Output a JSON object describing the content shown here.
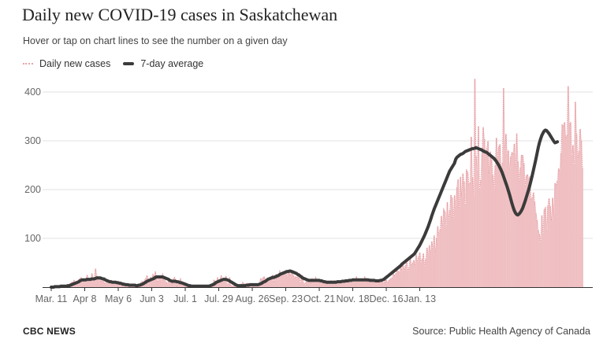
{
  "header": {
    "title": "Daily new COVID-19 cases in Saskatchewan",
    "subtitle": "Hover or tap on chart lines to see the number on a given day"
  },
  "legend": {
    "daily_label": "Daily new cases",
    "avg_label": "7-day average"
  },
  "footer": {
    "brand": "CBC NEWS",
    "source": "Source: Public Health Agency of Canada"
  },
  "colors": {
    "bar_fill": "#efbfc2",
    "daily_line": "#e6939a",
    "avg_line": "#3b3b3b",
    "grid": "#e2e2e2"
  },
  "chart_data": {
    "type": "bar",
    "title": "Daily new COVID-19 cases in Saskatchewan",
    "xlabel": "",
    "ylabel": "",
    "ylim": [
      0,
      400
    ],
    "yticks": [
      100,
      200,
      300,
      400
    ],
    "grid": true,
    "legend_placement": "top-left",
    "x_tick_labels": [
      "Mar. 11",
      "Apr 8",
      "May 6",
      "Jun 3",
      "Jul. 1",
      "Jul. 29",
      "Aug. 26",
      "Sep. 23",
      "Oct. 21",
      "Nov. 18",
      "Dec. 16",
      "Jan. 13"
    ],
    "start_date": "2020-03-11",
    "tick_interval_days": 28,
    "series": [
      {
        "name": "Daily new cases",
        "style": "bars-with-dotted-line",
        "values": [
          0,
          0,
          1,
          2,
          0,
          3,
          2,
          1,
          4,
          2,
          1,
          3,
          0,
          5,
          6,
          2,
          8,
          10,
          9,
          14,
          12,
          11,
          13,
          15,
          18,
          20,
          13,
          12,
          10,
          16,
          25,
          17,
          12,
          15,
          28,
          18,
          20,
          38,
          24,
          15,
          14,
          20,
          12,
          15,
          10,
          8,
          12,
          16,
          11,
          9,
          14,
          13,
          9,
          10,
          7,
          8,
          12,
          9,
          6,
          5,
          2,
          4,
          6,
          5,
          6,
          5,
          3,
          4,
          4,
          2,
          0,
          3,
          4,
          6,
          5,
          10,
          12,
          8,
          14,
          18,
          24,
          17,
          11,
          20,
          17,
          26,
          21,
          32,
          19,
          12,
          20,
          21,
          20,
          27,
          15,
          14,
          10,
          9,
          13,
          12,
          15,
          8,
          17,
          20,
          13,
          3,
          12,
          8,
          18,
          3,
          7,
          4,
          3,
          5,
          5,
          1,
          0,
          2,
          1,
          2,
          1,
          1,
          1,
          5,
          1,
          1,
          3,
          0,
          2,
          4,
          2,
          1,
          2,
          3,
          6,
          8,
          15,
          10,
          9,
          20,
          9,
          17,
          24,
          16,
          12,
          14,
          23,
          6,
          7,
          20,
          4,
          2,
          3,
          2,
          2,
          2,
          0,
          2,
          5,
          4,
          10,
          8,
          2,
          4,
          8,
          8,
          3,
          3,
          3,
          1,
          3,
          6,
          4,
          6,
          9,
          18,
          15,
          20,
          21,
          12,
          16,
          15,
          17,
          14,
          20,
          25,
          12,
          17,
          27,
          15,
          25,
          33,
          27,
          22,
          30,
          29,
          33,
          18,
          34,
          34,
          22,
          35,
          25,
          20,
          22,
          18,
          25,
          20,
          10,
          20,
          24,
          8,
          5,
          12,
          10,
          14,
          15,
          9,
          18,
          12,
          15,
          20,
          10,
          12,
          15,
          6,
          11,
          14,
          12,
          8,
          12,
          7,
          13,
          8,
          14,
          9,
          12,
          14,
          7,
          12,
          10,
          13,
          8,
          14,
          9,
          13,
          10,
          11,
          12,
          13,
          10,
          16,
          18,
          14,
          14,
          21,
          15,
          18,
          11,
          12,
          12,
          14,
          21,
          18,
          11,
          12,
          13,
          18,
          15,
          14,
          9,
          13,
          11,
          14,
          11,
          12,
          13,
          10,
          9,
          13,
          15,
          8,
          13,
          16,
          18,
          20,
          27,
          24,
          28,
          40,
          32,
          30,
          42,
          35,
          50,
          35,
          44,
          57,
          34,
          41,
          60,
          47,
          49,
          55,
          45,
          67,
          53,
          62,
          71,
          50,
          58,
          69,
          44,
          59,
          81,
          66,
          86,
          68,
          94,
          80,
          106,
          70,
          101,
          125,
          107,
          119,
          146,
          125,
          160,
          155,
          127,
          174,
          137,
          158,
          189,
          183,
          140,
          188,
          166,
          205,
          221,
          163,
          226,
          186,
          233,
          217,
          170,
          241,
          236,
          212,
          214,
          308,
          225,
          187,
          427,
          269,
          240,
          330,
          202,
          220,
          275,
          328,
          304,
          260,
          285,
          299,
          232,
          278,
          262,
          230,
          204,
          250,
          306,
          268,
          288,
          293,
          233,
          255,
          408,
          281,
          314,
          273,
          280,
          240,
          268,
          276,
          274,
          294,
          243,
          315,
          258,
          221,
          246,
          271,
          270,
          254,
          208,
          228,
          231,
          220,
          227,
          181,
          184,
          194,
          175,
          152,
          137,
          117,
          108,
          94,
          147,
          112,
          159,
          163,
          117,
          167,
          182,
          166,
          137,
          183,
          152,
          213,
          211,
          218,
          243,
          237,
          275,
          333,
          331,
          338,
          308,
          312,
          412,
          331,
          338,
          271,
          291,
          252,
          380,
          314,
          264,
          279,
          324,
          300,
          245
        ]
      },
      {
        "name": "7-day average",
        "style": "line",
        "values": [
          0,
          0,
          0,
          1,
          1,
          1,
          1,
          1,
          2,
          2,
          2,
          2,
          2,
          2,
          3,
          3,
          4,
          5,
          6,
          7,
          8,
          9,
          10,
          11,
          13,
          14,
          15,
          15,
          15,
          15,
          16,
          16,
          16,
          16,
          17,
          17,
          17,
          18,
          19,
          19,
          19,
          19,
          18,
          17,
          17,
          15,
          14,
          13,
          12,
          11,
          11,
          10,
          10,
          10,
          10,
          9,
          9,
          8,
          8,
          7,
          6,
          6,
          5,
          5,
          5,
          4,
          4,
          4,
          4,
          4,
          4,
          3,
          3,
          4,
          4,
          5,
          6,
          7,
          9,
          10,
          12,
          13,
          14,
          15,
          16,
          17,
          18,
          20,
          21,
          21,
          21,
          21,
          21,
          21,
          20,
          19,
          18,
          17,
          16,
          14,
          13,
          12,
          12,
          12,
          12,
          11,
          11,
          10,
          9,
          9,
          8,
          7,
          6,
          5,
          4,
          3,
          3,
          2,
          2,
          2,
          2,
          2,
          2,
          2,
          2,
          2,
          2,
          2,
          2,
          2,
          2,
          2,
          2,
          3,
          4,
          5,
          6,
          8,
          10,
          11,
          12,
          13,
          14,
          15,
          16,
          16,
          16,
          15,
          14,
          13,
          11,
          10,
          8,
          7,
          5,
          4,
          3,
          3,
          3,
          3,
          3,
          3,
          3,
          4,
          4,
          4,
          5,
          5,
          5,
          5,
          5,
          5,
          5,
          5,
          6,
          7,
          8,
          10,
          11,
          12,
          14,
          16,
          17,
          18,
          19,
          20,
          20,
          21,
          22,
          23,
          24,
          26,
          27,
          28,
          29,
          30,
          31,
          32,
          32,
          33,
          33,
          32,
          31,
          30,
          29,
          28,
          26,
          25,
          23,
          21,
          19,
          18,
          17,
          16,
          15,
          14,
          14,
          14,
          14,
          14,
          14,
          14,
          14,
          14,
          14,
          13,
          13,
          12,
          11,
          11,
          10,
          10,
          10,
          10,
          10,
          10,
          10,
          10,
          10,
          11,
          11,
          11,
          11,
          12,
          12,
          12,
          13,
          13,
          13,
          14,
          14,
          14,
          15,
          15,
          15,
          15,
          15,
          15,
          15,
          15,
          15,
          15,
          15,
          15,
          15,
          15,
          14,
          14,
          14,
          14,
          14,
          13,
          13,
          13,
          13,
          14,
          14,
          15,
          16,
          18,
          20,
          22,
          24,
          26,
          28,
          30,
          32,
          34,
          36,
          38,
          40,
          42,
          44,
          47,
          49,
          51,
          53,
          55,
          57,
          59,
          61,
          63,
          65,
          67,
          70,
          74,
          78,
          82,
          86,
          91,
          96,
          101,
          106,
          112,
          118,
          124,
          131,
          138,
          146,
          153,
          160,
          166,
          172,
          178,
          184,
          190,
          196,
          202,
          208,
          214,
          220,
          226,
          232,
          238,
          242,
          246,
          250,
          254,
          262,
          266,
          268,
          270,
          272,
          273,
          274,
          276,
          278,
          279,
          280,
          281,
          282,
          283,
          284,
          284,
          285,
          286,
          285,
          284,
          283,
          282,
          281,
          279,
          278,
          277,
          276,
          274,
          272,
          270,
          268,
          266,
          264,
          261,
          258,
          254,
          250,
          245,
          240,
          234,
          227,
          220,
          213,
          206,
          198,
          190,
          181,
          172,
          164,
          157,
          152,
          149,
          148,
          150,
          153,
          157,
          162,
          169,
          176,
          184,
          192,
          200,
          209,
          219,
          229,
          240,
          251,
          262,
          274,
          286,
          296,
          304,
          311,
          316,
          320,
          322,
          321,
          318,
          315,
          311,
          307,
          303,
          299,
          296,
          297,
          298
        ]
      }
    ]
  }
}
